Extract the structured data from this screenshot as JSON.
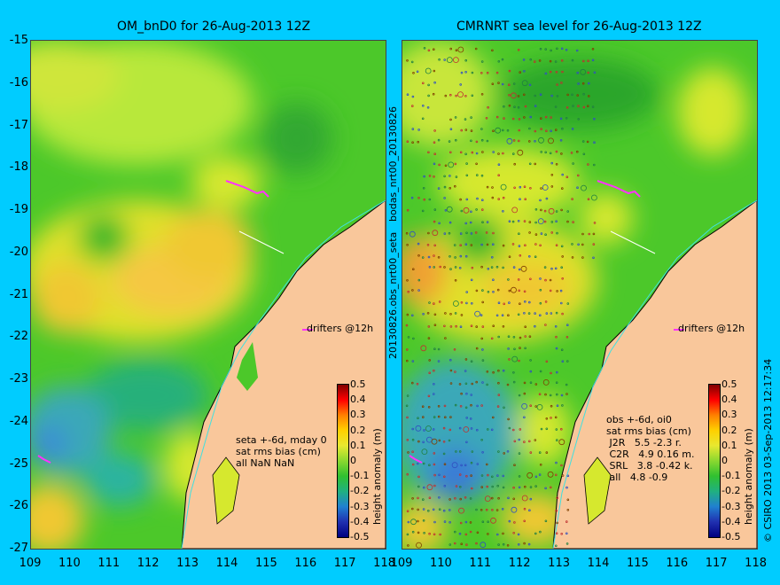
{
  "left_panel": {
    "title": "OM_bnD0 for 26-Aug-2013 12Z",
    "stats": "seta +-6d, mday 0\nsat rms bias (cm)\nall NaN NaN",
    "drifters_label": "drifters @12h"
  },
  "right_panel": {
    "title": "CMRNRT sea level  for 26-Aug-2013 12Z",
    "stats": "obs +-6d, oi0\nsat rms bias (cm)\n J2R   5.5 -2.3 r.\n C2R   4.9 0.16 m.\n SRL   3.8 -0.42 k.\n all   4.8 -0.9",
    "drifters_label": "drifters @12h"
  },
  "side_labels": {
    "middle_top": "bodas_nrt00_20130826",
    "middle_bottom": "20130826.obs_nrt00_seta",
    "right_edge": "© CSIRO 2013   03-Sep-2013 12:17:34"
  },
  "colorbar": {
    "label": "height anomaly (m)",
    "ticks": [
      "0.5",
      "0.4",
      "0.3",
      "0.2",
      "0.1",
      "0",
      "-0.1",
      "-0.2",
      "-0.3",
      "-0.4",
      "-0.5"
    ]
  },
  "axes": {
    "y_ticks": [
      "-15",
      "-16",
      "-17",
      "-18",
      "-19",
      "-20",
      "-21",
      "-22",
      "-23",
      "-24",
      "-25",
      "-26",
      "-27"
    ],
    "x_ticks": [
      "109",
      "110",
      "111",
      "112",
      "113",
      "114",
      "115",
      "116",
      "117",
      "118"
    ]
  },
  "colors": {
    "background": "#00ccff",
    "land": "#f9c79b",
    "field_base": "#4cc82a",
    "drifter": "#ff33ff",
    "coast_line": "#40e0e0"
  }
}
